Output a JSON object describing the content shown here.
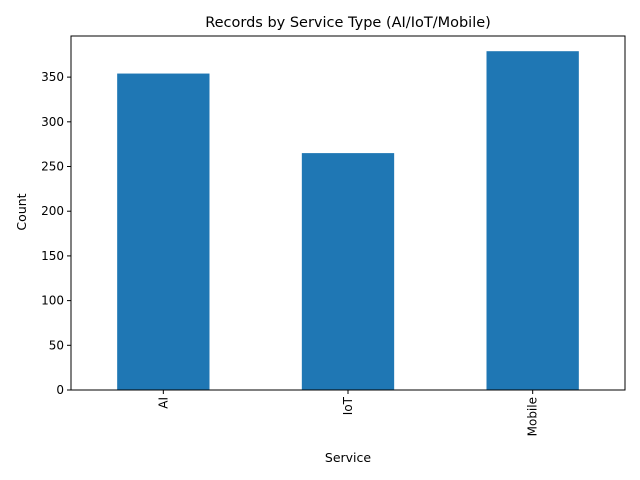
{
  "chart_data": {
    "type": "bar",
    "title": "Records by Service Type (AI/IoT/Mobile)",
    "xlabel": "Service",
    "ylabel": "Count",
    "categories": [
      "AI",
      "IoT",
      "Mobile"
    ],
    "values": [
      354,
      265,
      379
    ],
    "ylim": [
      0,
      396
    ],
    "yticks": [
      0,
      50,
      100,
      150,
      200,
      250,
      300,
      350
    ],
    "bar_color": "#1f77b4",
    "xtick_rotation": "vertical",
    "grid": false,
    "legend": "none"
  }
}
